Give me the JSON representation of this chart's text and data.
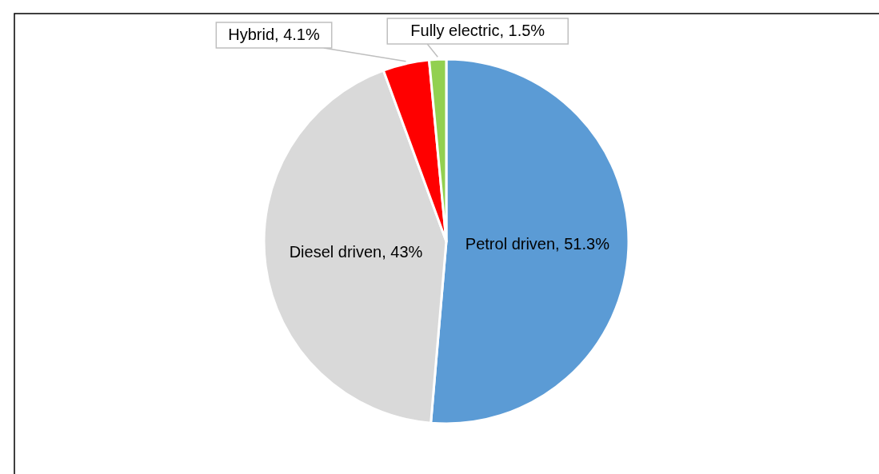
{
  "chart_data": {
    "type": "pie",
    "categories": [
      "Petrol driven",
      "Diesel driven",
      "Hybrid",
      "Fully electric"
    ],
    "values": [
      51.3,
      43,
      4.1,
      1.5
    ],
    "colors": [
      "#5b9bd5",
      "#d9d9d9",
      "#ff0000",
      "#92d050"
    ],
    "value_labels": [
      "51.3%",
      "43%",
      "4.1%",
      "1.5%"
    ]
  }
}
